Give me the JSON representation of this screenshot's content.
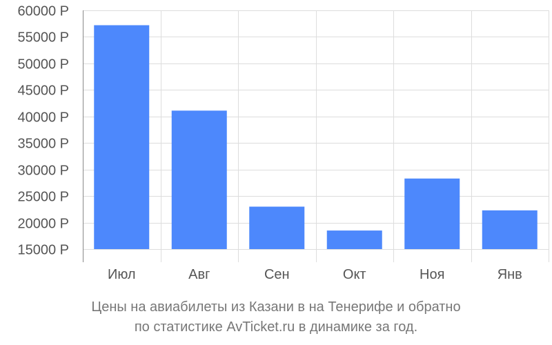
{
  "chart_data": {
    "type": "bar",
    "categories": [
      "Июл",
      "Авг",
      "Сен",
      "Окт",
      "Ноя",
      "Янв"
    ],
    "values": [
      57200,
      41100,
      23000,
      18500,
      28300,
      22300
    ],
    "ylim": [
      15000,
      60000
    ],
    "yticks": [
      15000,
      20000,
      25000,
      30000,
      35000,
      40000,
      45000,
      50000,
      55000,
      60000
    ],
    "ytick_labels": [
      "15000 Р",
      "20000 Р",
      "25000 Р",
      "30000 Р",
      "35000 Р",
      "40000 Р",
      "45000 Р",
      "50000 Р",
      "55000 Р",
      "60000 Р"
    ],
    "grid": true,
    "bar_color": "#4d88fc",
    "caption": [
      "Цены на авиабилеты из Казани в на Тенерифе и обратно",
      "по статистике AvTicket.ru в динамике за год."
    ]
  }
}
